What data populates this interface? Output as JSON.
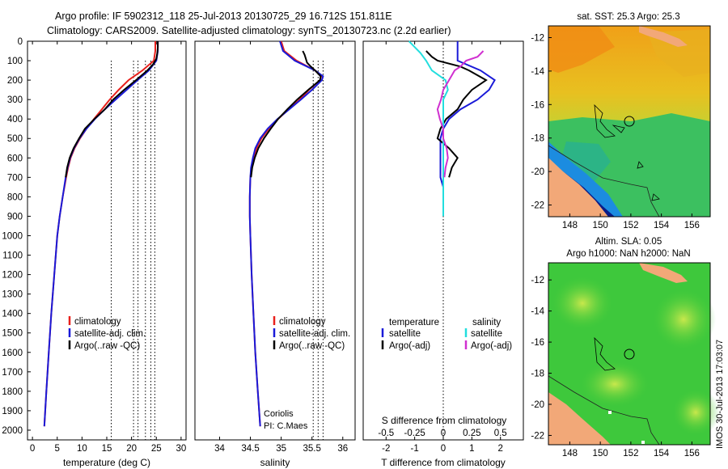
{
  "header": {
    "title_line1": "Argo profile: IF 5902312_118 25-Jul-2013 20130725_29 16.712S 151.811E",
    "title_line2": "Climatology: CARS2009. Satellite-adjusted climatology: synTS_20130723.nc (2.2d earlier)"
  },
  "depth_ticks": [
    "0",
    "100",
    "200",
    "300",
    "400",
    "500",
    "600",
    "700",
    "800",
    "900",
    "1000",
    "1100",
    "1200",
    "1300",
    "1400",
    "1500",
    "1600",
    "1700",
    "1800",
    "1900",
    "2000"
  ],
  "temp_panel": {
    "xlabel": "temperature (deg C)",
    "xticks": [
      "0",
      "5",
      "10",
      "15",
      "20",
      "25",
      "30"
    ],
    "legend": [
      "climatology",
      "satellite-adj. clim.",
      "Argo(..raw -QC)"
    ]
  },
  "sal_panel": {
    "xlabel": "salinity",
    "xticks": [
      "34",
      "34.5",
      "35",
      "35.5",
      "36"
    ],
    "legend": [
      "climatology",
      "satellite-adj. clim.",
      "Argo(..raw -QC)"
    ],
    "note1": "Coriolis",
    "note2": "PI: C.Maes"
  },
  "diff_panel": {
    "xlabel": "T difference from climatology",
    "top_label": "S difference from climatology",
    "xticks_T": [
      "-2",
      "-1",
      "0",
      "1",
      "2"
    ],
    "xticks_S": [
      "-0.5",
      "-0.25",
      "0",
      "0.25",
      "0.5"
    ],
    "legend_temp_title": "temperature",
    "legend_sal_title": "salinity",
    "legend_temp": [
      "satellite",
      "Argo(-adj)"
    ],
    "legend_sal": [
      "satellite",
      "Argo(-adj)"
    ]
  },
  "map1": {
    "title": "sat. SST: 25.3 Argo: 25.3",
    "yticks": [
      "-12",
      "-14",
      "-16",
      "-18",
      "-20",
      "-22"
    ],
    "xticks": [
      "148",
      "150",
      "152",
      "154",
      "156"
    ]
  },
  "map2": {
    "title1": "Altim. SLA: 0.05",
    "title2": "Argo h1000: NaN h2000: NaN",
    "yticks": [
      "-12",
      "-14",
      "-16",
      "-18",
      "-20",
      "-22"
    ],
    "xticks": [
      "148",
      "150",
      "152",
      "154",
      "156"
    ]
  },
  "footer": {
    "stamp": "IMOS 30-Jul-2013 17:03:07"
  },
  "colors": {
    "climatology": "#e8201c",
    "satellite": "#1a1ad8",
    "argo": "#000000",
    "sal_satellite": "#22dede",
    "sal_argo": "#d030d0"
  },
  "chart_data": {
    "type": "line",
    "ylabel": "",
    "ylim": [
      2050,
      0
    ],
    "temperature": {
      "xlim": [
        -1,
        31
      ],
      "series": [
        {
          "name": "climatology",
          "depth": [
            0,
            50,
            100,
            150,
            200,
            250,
            300,
            350,
            400,
            450,
            500,
            550,
            600,
            650,
            700,
            800,
            900,
            1000,
            1200,
            1400,
            1600,
            1800,
            1980
          ],
          "values": [
            24.8,
            24.8,
            24.5,
            22.2,
            19.4,
            17.4,
            15.6,
            14.0,
            12.4,
            10.9,
            9.6,
            8.5,
            7.7,
            7.2,
            6.8,
            6.1,
            5.5,
            5.0,
            4.4,
            3.8,
            3.3,
            2.8,
            2.4
          ]
        },
        {
          "name": "satellite-adj. clim.",
          "depth": [
            0,
            50,
            100,
            150,
            200,
            250,
            300,
            350,
            400,
            450,
            500,
            550,
            600,
            650,
            700,
            800,
            900,
            1000,
            1200,
            1400,
            1600,
            1800,
            1980
          ],
          "values": [
            25.3,
            25.3,
            25.0,
            23.5,
            21.2,
            19.0,
            16.8,
            14.6,
            12.6,
            10.9,
            9.5,
            8.4,
            7.6,
            7.1,
            6.7,
            6.1,
            5.5,
            5.0,
            4.4,
            3.8,
            3.3,
            2.8,
            2.4
          ]
        },
        {
          "name": "Argo(..raw -QC)",
          "depth": [
            0,
            30,
            60,
            90,
            120,
            150,
            200,
            250,
            300,
            350,
            400,
            450,
            500,
            550,
            600,
            650,
            700
          ],
          "values": [
            25.3,
            25.3,
            25.2,
            25.0,
            24.3,
            23.2,
            20.9,
            18.5,
            16.3,
            14.6,
            12.5,
            10.6,
            9.4,
            8.3,
            7.5,
            7.0,
            6.7
          ]
        }
      ],
      "dotted_refs": [
        15.9,
        20.4,
        21.3,
        22.8,
        23.9,
        24.7
      ]
    },
    "salinity": {
      "xlim": [
        33.6,
        36.2
      ],
      "series": [
        {
          "name": "climatology",
          "depth": [
            0,
            50,
            100,
            150,
            180,
            200,
            250,
            300,
            350,
            400,
            450,
            500,
            550,
            600,
            650,
            700,
            800,
            900,
            1000,
            1200,
            1400,
            1600,
            1800,
            1980
          ],
          "values": [
            35.0,
            35.05,
            35.25,
            35.55,
            35.65,
            35.63,
            35.45,
            35.3,
            35.12,
            34.95,
            34.8,
            34.68,
            34.6,
            34.55,
            34.52,
            34.5,
            34.49,
            34.49,
            34.5,
            34.52,
            34.55,
            34.58,
            34.62,
            34.66
          ]
        },
        {
          "name": "satellite-adj. clim.",
          "depth": [
            0,
            50,
            100,
            150,
            180,
            200,
            250,
            300,
            350,
            400,
            450,
            500,
            550,
            600,
            650,
            700,
            800,
            900,
            1000,
            1200,
            1400,
            1600,
            1800,
            1980
          ],
          "values": [
            34.98,
            35.03,
            35.22,
            35.55,
            35.68,
            35.66,
            35.5,
            35.32,
            35.13,
            34.94,
            34.78,
            34.66,
            34.58,
            34.54,
            34.51,
            34.5,
            34.49,
            34.49,
            34.5,
            34.52,
            34.55,
            34.58,
            34.62,
            34.66
          ]
        },
        {
          "name": "Argo(..raw -QC)",
          "depth": [
            50,
            70,
            90,
            110,
            130,
            150,
            180,
            200,
            250,
            300,
            350,
            400,
            450,
            500,
            550,
            600,
            650,
            700
          ],
          "values": [
            35.35,
            35.38,
            35.4,
            35.42,
            35.48,
            35.55,
            35.64,
            35.63,
            35.44,
            35.26,
            35.1,
            34.95,
            34.83,
            34.72,
            34.63,
            34.57,
            34.53,
            34.51
          ]
        }
      ],
      "dotted_refs": [
        35.52,
        35.6,
        35.68
      ]
    },
    "difference": {
      "xlim_T": [
        -2.8,
        2.8
      ],
      "xlim_S": [
        -0.7,
        0.7
      ],
      "series": [
        {
          "name": "temperature satellite",
          "depth": [
            0,
            50,
            100,
            150,
            200,
            250,
            300,
            350,
            400,
            450,
            500,
            550,
            600,
            650,
            700,
            750,
            800,
            850,
            880
          ],
          "values": [
            0.5,
            0.5,
            0.5,
            1.3,
            1.8,
            1.6,
            1.2,
            0.6,
            0.2,
            0.0,
            -0.1,
            -0.1,
            -0.1,
            -0.1,
            -0.1,
            0.0,
            0.0,
            0.0,
            0.0
          ]
        },
        {
          "name": "temperature Argo(-adj)",
          "depth": [
            50,
            80,
            100,
            130,
            150,
            200,
            250,
            300,
            350,
            400,
            450,
            500,
            550,
            600,
            650,
            700
          ],
          "values": [
            -0.6,
            -0.4,
            -0.2,
            0.6,
            0.9,
            1.5,
            1.0,
            0.7,
            0.5,
            0.1,
            -0.1,
            -0.2,
            0.2,
            0.5,
            0.3,
            0.2
          ]
        },
        {
          "name": "salinity satellite",
          "depth": [
            0,
            30,
            60,
            100,
            150,
            200,
            250,
            300,
            400,
            500,
            600,
            700,
            800,
            900
          ],
          "values": [
            -0.3,
            -0.25,
            -0.2,
            -0.15,
            -0.1,
            0.02,
            0.04,
            0.0,
            0.0,
            0.0,
            0.0,
            0.0,
            0.0,
            0.0
          ]
        },
        {
          "name": "salinity Argo(-adj)",
          "depth": [
            50,
            80,
            100,
            130,
            150,
            200,
            250,
            300,
            350,
            400,
            450,
            500,
            550,
            600,
            650,
            700
          ],
          "values": [
            0.35,
            0.3,
            0.2,
            0.15,
            0.1,
            0.05,
            0.0,
            -0.02,
            -0.05,
            -0.03,
            0.0,
            0.0,
            0.03,
            0.04,
            0.02,
            0.01
          ]
        }
      ]
    }
  }
}
